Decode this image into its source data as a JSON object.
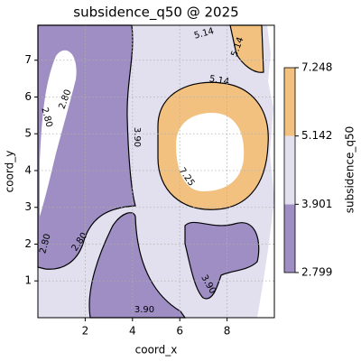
{
  "chart_data": {
    "type": "contourf",
    "title": "subsidence_q50 @ 2025",
    "x_label": "coord_x",
    "y_label": "coord_y",
    "xlim": [
      0,
      10
    ],
    "ylim": [
      0,
      7.95
    ],
    "xticks": [
      2,
      4,
      6,
      8
    ],
    "yticks": [
      1,
      2,
      3,
      4,
      5,
      6,
      7
    ],
    "grid": true,
    "colorbar": {
      "label": "subsidence_q50",
      "levels": [
        2.799,
        3.901,
        5.142,
        7.248
      ],
      "colors": [
        "#9e8ec4",
        "#e2e0ef",
        "#f3c17f"
      ]
    },
    "contour_labels": [
      {
        "value": 5.14,
        "label": "5.14"
      },
      {
        "value": 5.14,
        "label": "5.14"
      },
      {
        "value": 5.14,
        "label": "5.14"
      },
      {
        "value": 7.25,
        "label": "7.25"
      },
      {
        "value": 3.9,
        "label": "3.90"
      },
      {
        "value": 3.9,
        "label": "3.90"
      },
      {
        "value": 3.9,
        "label": "3.90"
      },
      {
        "value": 2.8,
        "label": "2.80"
      },
      {
        "value": 2.8,
        "label": "2.80"
      },
      {
        "value": 2.8,
        "label": "2.80"
      },
      {
        "value": 2.8,
        "label": "2.80"
      }
    ]
  }
}
